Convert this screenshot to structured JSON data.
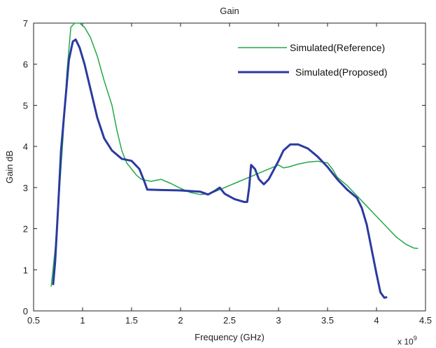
{
  "chart_data": {
    "type": "line",
    "title": "Gain",
    "xlabel": "Frequency (GHz)",
    "ylabel": "Gain dB",
    "x_multiplier_label": "x 10",
    "x_multiplier_exponent": "9",
    "xlim": [
      0.5,
      4.5
    ],
    "ylim": [
      0,
      7
    ],
    "xticks": [
      0.5,
      1,
      1.5,
      2,
      2.5,
      3,
      3.5,
      4,
      4.5
    ],
    "xtick_labels": [
      "0.5",
      "1",
      "1.5",
      "2",
      "2.5",
      "3",
      "3.5",
      "4",
      "4.5"
    ],
    "yticks": [
      0,
      1,
      2,
      3,
      4,
      5,
      6,
      7
    ],
    "ytick_labels": [
      "0",
      "1",
      "2",
      "3",
      "4",
      "5",
      "6",
      "7"
    ],
    "grid": false,
    "legend_position": "top-right",
    "series": [
      {
        "name": "Simulated(Reference)",
        "color": "#22a84a",
        "points": [
          [
            0.68,
            0.6
          ],
          [
            0.72,
            1.5
          ],
          [
            0.76,
            2.8
          ],
          [
            0.8,
            4.2
          ],
          [
            0.84,
            5.8
          ],
          [
            0.88,
            6.9
          ],
          [
            0.92,
            7.0
          ],
          [
            0.97,
            7.0
          ],
          [
            1.02,
            6.9
          ],
          [
            1.08,
            6.65
          ],
          [
            1.15,
            6.2
          ],
          [
            1.22,
            5.6
          ],
          [
            1.3,
            5.0
          ],
          [
            1.35,
            4.4
          ],
          [
            1.4,
            3.9
          ],
          [
            1.45,
            3.6
          ],
          [
            1.5,
            3.45
          ],
          [
            1.55,
            3.3
          ],
          [
            1.6,
            3.2
          ],
          [
            1.7,
            3.15
          ],
          [
            1.8,
            3.2
          ],
          [
            1.9,
            3.1
          ],
          [
            2.0,
            2.98
          ],
          [
            2.1,
            2.88
          ],
          [
            2.2,
            2.83
          ],
          [
            2.3,
            2.85
          ],
          [
            2.4,
            2.95
          ],
          [
            2.5,
            3.05
          ],
          [
            2.6,
            3.15
          ],
          [
            2.7,
            3.25
          ],
          [
            2.8,
            3.35
          ],
          [
            2.9,
            3.45
          ],
          [
            3.0,
            3.55
          ],
          [
            3.05,
            3.48
          ],
          [
            3.1,
            3.5
          ],
          [
            3.2,
            3.57
          ],
          [
            3.3,
            3.62
          ],
          [
            3.4,
            3.64
          ],
          [
            3.5,
            3.6
          ],
          [
            3.55,
            3.45
          ],
          [
            3.6,
            3.25
          ],
          [
            3.7,
            3.05
          ],
          [
            3.8,
            2.8
          ],
          [
            3.9,
            2.55
          ],
          [
            4.0,
            2.3
          ],
          [
            4.1,
            2.05
          ],
          [
            4.2,
            1.8
          ],
          [
            4.3,
            1.62
          ],
          [
            4.38,
            1.53
          ],
          [
            4.42,
            1.52
          ]
        ]
      },
      {
        "name": "Simulated(Proposed)",
        "color": "#2b3aa0",
        "points": [
          [
            0.7,
            0.65
          ],
          [
            0.72,
            1.2
          ],
          [
            0.75,
            2.5
          ],
          [
            0.78,
            3.9
          ],
          [
            0.82,
            5.0
          ],
          [
            0.86,
            6.1
          ],
          [
            0.9,
            6.55
          ],
          [
            0.93,
            6.6
          ],
          [
            0.97,
            6.4
          ],
          [
            1.02,
            6.0
          ],
          [
            1.08,
            5.4
          ],
          [
            1.15,
            4.7
          ],
          [
            1.22,
            4.2
          ],
          [
            1.3,
            3.9
          ],
          [
            1.4,
            3.7
          ],
          [
            1.5,
            3.65
          ],
          [
            1.58,
            3.45
          ],
          [
            1.63,
            3.15
          ],
          [
            1.66,
            2.95
          ],
          [
            1.8,
            2.94
          ],
          [
            2.0,
            2.93
          ],
          [
            2.2,
            2.9
          ],
          [
            2.28,
            2.83
          ],
          [
            2.35,
            2.92
          ],
          [
            2.4,
            3.0
          ],
          [
            2.45,
            2.85
          ],
          [
            2.55,
            2.72
          ],
          [
            2.65,
            2.65
          ],
          [
            2.68,
            2.65
          ],
          [
            2.7,
            3.0
          ],
          [
            2.72,
            3.55
          ],
          [
            2.76,
            3.45
          ],
          [
            2.8,
            3.2
          ],
          [
            2.85,
            3.08
          ],
          [
            2.9,
            3.2
          ],
          [
            3.0,
            3.65
          ],
          [
            3.05,
            3.9
          ],
          [
            3.12,
            4.05
          ],
          [
            3.2,
            4.05
          ],
          [
            3.3,
            3.95
          ],
          [
            3.4,
            3.75
          ],
          [
            3.5,
            3.5
          ],
          [
            3.6,
            3.2
          ],
          [
            3.7,
            2.95
          ],
          [
            3.8,
            2.75
          ],
          [
            3.85,
            2.5
          ],
          [
            3.9,
            2.1
          ],
          [
            3.95,
            1.5
          ],
          [
            4.0,
            0.9
          ],
          [
            4.04,
            0.45
          ],
          [
            4.08,
            0.32
          ],
          [
            4.1,
            0.33
          ]
        ]
      }
    ]
  }
}
